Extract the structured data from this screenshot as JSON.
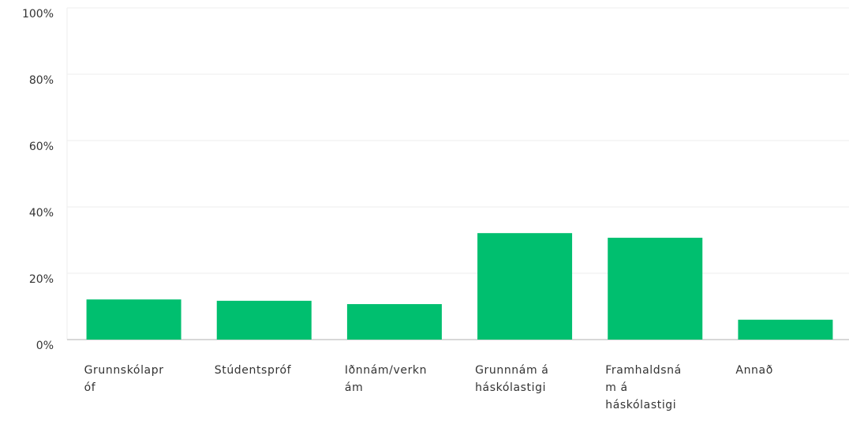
{
  "chart_data": {
    "type": "bar",
    "categories": [
      "Grunnskólapróf",
      "Stúdentspróf",
      "Iðnnám/verknám",
      "Grunnnám á háskólastigi",
      "Framhaldsnám á háskólastigi",
      "Annað"
    ],
    "values": [
      12.1,
      11.7,
      10.7,
      32.1,
      30.7,
      6.0
    ],
    "color": "#00bf6f",
    "ylim": [
      0,
      100
    ],
    "yticks": [
      {
        "value": 0,
        "label": "0%"
      },
      {
        "value": 20,
        "label": "20%"
      },
      {
        "value": 40,
        "label": "40%"
      },
      {
        "value": 60,
        "label": "60%"
      },
      {
        "value": 80,
        "label": "80%"
      },
      {
        "value": 100,
        "label": "100%"
      }
    ],
    "grid": true
  }
}
